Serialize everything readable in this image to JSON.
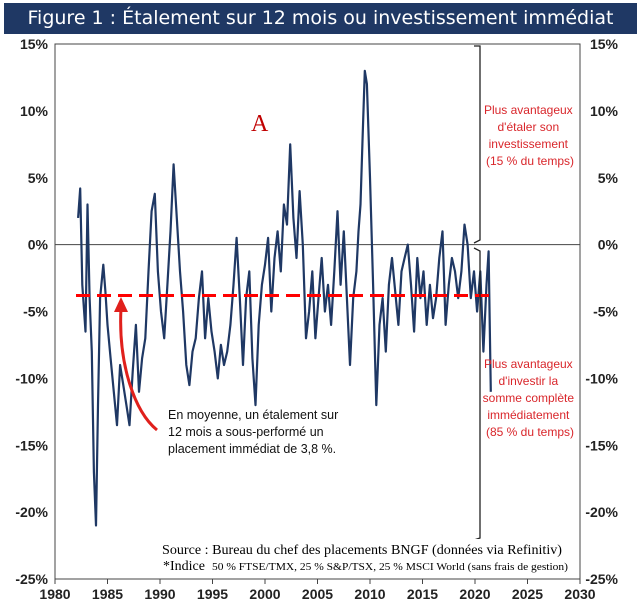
{
  "title": "Figure 1 : Étalement sur 12 mois ou investissement immédiat",
  "chart_data": {
    "type": "line",
    "title": "Figure 1 : Étalement sur 12 mois ou investissement immédiat",
    "xlim": [
      1980,
      2030
    ],
    "ylim": [
      -25,
      15
    ],
    "x_ticks": [
      1980,
      1985,
      1990,
      1995,
      2000,
      2005,
      2010,
      2015,
      2020,
      2025,
      2030
    ],
    "y_ticks": [
      15,
      10,
      5,
      0,
      -5,
      -10,
      -15,
      -20,
      -25
    ],
    "y_tick_labels": [
      "15%",
      "10%",
      "5%",
      "0%",
      "-5%",
      "-10%",
      "-15%",
      "-20%",
      "-25%"
    ],
    "x_tick_labels": [
      "1980",
      "1985",
      "1990",
      "1995",
      "2000",
      "2005",
      "2010",
      "2015",
      "2020",
      "2025",
      "2030"
    ],
    "grid": false,
    "series": [
      {
        "type": "line",
        "color": "#1f3864",
        "x": [
          1982.2,
          1982.4,
          1982.6,
          1982.9,
          1983.1,
          1983.3,
          1983.5,
          1983.7,
          1983.9,
          1984.1,
          1984.3,
          1984.6,
          1984.8,
          1985.0,
          1985.3,
          1985.6,
          1985.9,
          1986.2,
          1986.5,
          1986.8,
          1987.1,
          1987.4,
          1987.7,
          1988.0,
          1988.3,
          1988.6,
          1988.9,
          1989.2,
          1989.5,
          1989.8,
          1990.1,
          1990.4,
          1990.7,
          1991.0,
          1991.3,
          1991.6,
          1991.9,
          1992.2,
          1992.5,
          1992.8,
          1993.1,
          1993.4,
          1993.7,
          1994.0,
          1994.3,
          1994.6,
          1994.9,
          1995.2,
          1995.5,
          1995.8,
          1996.1,
          1996.4,
          1996.7,
          1997.0,
          1997.3,
          1997.6,
          1997.9,
          1998.2,
          1998.5,
          1998.8,
          1999.1,
          1999.4,
          1999.7,
          2000.0,
          2000.3,
          2000.6,
          2000.9,
          2001.2,
          2001.5,
          2001.8,
          2002.1,
          2002.4,
          2002.7,
          2003.0,
          2003.3,
          2003.6,
          2003.9,
          2004.2,
          2004.5,
          2004.8,
          2005.1,
          2005.4,
          2005.7,
          2006.0,
          2006.3,
          2006.6,
          2006.9,
          2007.2,
          2007.5,
          2007.8,
          2008.1,
          2008.4,
          2008.7,
          2008.9,
          2009.1,
          2009.3,
          2009.5,
          2009.7,
          2010.0,
          2010.3,
          2010.6,
          2010.9,
          2011.2,
          2011.5,
          2011.8,
          2012.1,
          2012.4,
          2012.7,
          2013.0,
          2013.3,
          2013.6,
          2013.9,
          2014.2,
          2014.5,
          2014.8,
          2015.1,
          2015.4,
          2015.7,
          2016.0,
          2016.3,
          2016.6,
          2016.9,
          2017.2,
          2017.5,
          2017.8,
          2018.1,
          2018.4,
          2018.7,
          2019.0,
          2019.3,
          2019.6,
          2019.9,
          2020.2,
          2020.5,
          2020.8,
          2021.1,
          2021.3,
          2021.5
        ],
        "y": [
          2.0,
          4.2,
          -3.0,
          -6.5,
          3.0,
          -4.0,
          -8.0,
          -17.0,
          -21.0,
          -12.0,
          -4.0,
          -1.5,
          -3.5,
          -6.0,
          -8.5,
          -11.0,
          -13.5,
          -9.0,
          -10.5,
          -12.0,
          -13.5,
          -9.5,
          -6.0,
          -11.0,
          -8.5,
          -7.0,
          -2.0,
          2.5,
          3.8,
          -2.0,
          -5.0,
          -7.0,
          -3.0,
          1.0,
          6.0,
          2.0,
          -2.0,
          -5.0,
          -9.0,
          -10.5,
          -8.0,
          -7.0,
          -4.0,
          -2.0,
          -7.0,
          -4.0,
          -6.5,
          -8.0,
          -10.0,
          -7.5,
          -9.0,
          -8.0,
          -6.0,
          -3.0,
          0.5,
          -4.0,
          -9.0,
          -4.0,
          -2.0,
          -8.5,
          -12.0,
          -6.0,
          -3.0,
          -1.5,
          0.5,
          -5.0,
          -1.0,
          1.0,
          -2.0,
          3.0,
          1.5,
          7.5,
          2.0,
          -1.0,
          4.0,
          0.0,
          -7.0,
          -5.0,
          -2.0,
          -7.0,
          -4.0,
          -1.0,
          -5.0,
          -3.0,
          -6.0,
          -2.0,
          2.5,
          -3.0,
          1.0,
          -4.0,
          -9.0,
          -4.0,
          -2.0,
          1.0,
          3.0,
          8.0,
          13.0,
          12.0,
          5.0,
          -3.0,
          -12.0,
          -6.0,
          -4.0,
          -8.0,
          -3.0,
          -1.0,
          -3.5,
          -6.0,
          -2.0,
          -1.0,
          0.0,
          -3.0,
          -6.5,
          -1.0,
          -4.0,
          -2.0,
          -6.0,
          -3.0,
          -5.5,
          -4.0,
          -1.0,
          1.0,
          -6.0,
          -3.0,
          -1.0,
          -2.0,
          -4.0,
          -2.0,
          1.5,
          0.0,
          -4.0,
          -2.0,
          -5.0,
          -2.0,
          -8.0,
          -3.0,
          -0.5,
          -11.0
        ]
      },
      {
        "name": "average",
        "type": "dashed-hline",
        "color": "#ff0000",
        "x": [
          1982.0,
          2021.5
        ],
        "y": [
          -3.8,
          -3.8
        ]
      }
    ],
    "annotations": {
      "big_letter": "A",
      "upper_bracket_lines": [
        "Plus avantageux",
        "d'étaler son",
        "investissement",
        "(15 % du temps)"
      ],
      "lower_bracket_lines": [
        "Plus avantageux",
        "d'investir la",
        "somme complète",
        "immédiatement",
        "(85 % du temps)"
      ],
      "average_note_lines": [
        "En moyenne, un étalement sur",
        "12 mois a sous-performé un",
        "placement immédiat de 3,8 %."
      ],
      "source_line": "Source : Bureau du chef des placements BNGF (données via Refinitiv)",
      "index_star": "*Indice",
      "index_detail": "50 % FTSE/TMX, 25 % S&P/TSX, 25 % MSCI World (sans frais de gestion)"
    },
    "colors": {
      "title_bar": "#1f3864",
      "line": "#1f3864",
      "average": "#ff0000",
      "annotation_red": "#d9262b"
    }
  }
}
